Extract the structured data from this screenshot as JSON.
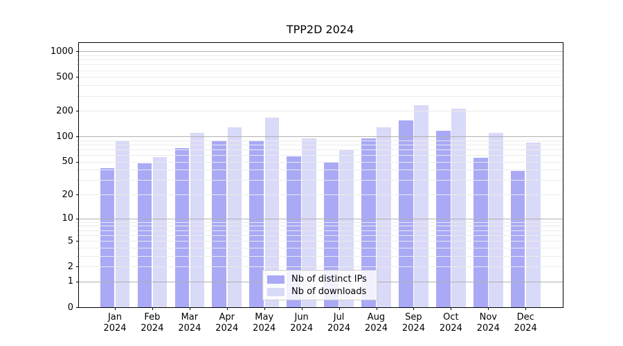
{
  "title": "TPP2D 2024",
  "chart_data": {
    "type": "bar",
    "title": "TPP2D 2024",
    "categories": [
      "Jan",
      "Feb",
      "Mar",
      "Apr",
      "May",
      "Jun",
      "Jul",
      "Aug",
      "Sep",
      "Oct",
      "Nov",
      "Dec"
    ],
    "year_label": "2024",
    "series": [
      {
        "name": "Nb of distinct IPs",
        "color": "#a9a9f6",
        "values": [
          42,
          48,
          73,
          90,
          88,
          58,
          50,
          94,
          154,
          116,
          56,
          39
        ]
      },
      {
        "name": "Nb of downloads",
        "color": "#d9d9f8",
        "values": [
          89,
          57,
          111,
          128,
          165,
          94,
          69,
          128,
          235,
          214,
          111,
          85
        ]
      }
    ],
    "yscale": "log1p",
    "yticks": [
      0,
      1,
      2,
      5,
      10,
      20,
      50,
      100,
      200,
      500,
      1000
    ],
    "ylim": [
      0,
      1260
    ],
    "major_grid_values": [
      1,
      10,
      100,
      1000
    ],
    "grid": "on",
    "legend_position": "lower center",
    "colors": {
      "major_grid": "#b0b0b0",
      "minor_grid": "#ebebeb",
      "spine": "#000000",
      "background": "#ffffff"
    }
  }
}
